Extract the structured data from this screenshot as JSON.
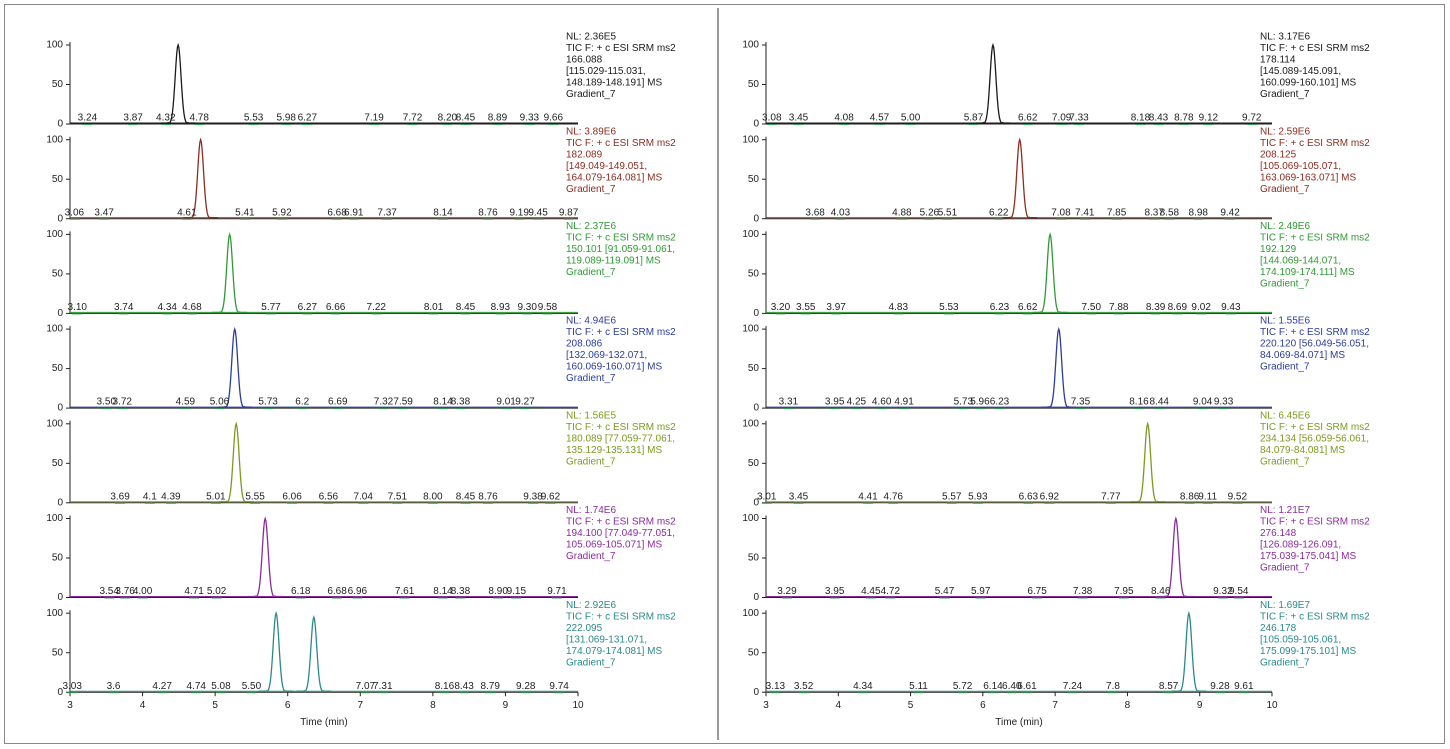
{
  "chart_data": [
    {
      "type": "line",
      "color": "#1a1a1a",
      "xlim": [
        3,
        10
      ],
      "ylim": [
        0,
        100
      ],
      "yticks": [
        0,
        50,
        100
      ],
      "info": [
        "NL: 2.36E5",
        "TIC F: + c ESI SRM ms2",
        "166.088",
        "[115.029-115.031,",
        "148.189-148.191] MS",
        "Gradient_7"
      ],
      "x": [
        4.49
      ],
      "values": [
        100
      ],
      "annotations": [
        3.24,
        3.87,
        4.32,
        4.78,
        5.53,
        5.98,
        6.27,
        7.19,
        7.72,
        {
          "value": 8.2,
          "label": "8.20"
        },
        8.45,
        8.89,
        9.33,
        9.66
      ]
    },
    {
      "type": "line",
      "color": "#8b2d20",
      "xlim": [
        3,
        10
      ],
      "ylim": [
        0,
        100
      ],
      "yticks": [
        0,
        50,
        100
      ],
      "info": [
        "NL: 3.89E6",
        "TIC F: + c ESI SRM ms2",
        "182.089",
        "[149.049-149.051,",
        "164.079-164.081] MS",
        "Gradient_7"
      ],
      "x": [
        4.8
      ],
      "values": [
        100
      ],
      "annotations": [
        3.06,
        3.47,
        4.61,
        5.41,
        5.92,
        6.68,
        6.91,
        7.37,
        8.14,
        8.76,
        9.19,
        9.45,
        9.87
      ]
    },
    {
      "type": "line",
      "color": "#2f9a35",
      "xlim": [
        3,
        10
      ],
      "ylim": [
        0,
        100
      ],
      "yticks": [
        0,
        50,
        100
      ],
      "info": [
        "NL: 2.37E6",
        "TIC F: + c ESI SRM ms2",
        "150.101 [91.059-91.061,",
        "119.089-119.091] MS",
        "Gradient_7"
      ],
      "x": [
        5.2
      ],
      "values": [
        100
      ],
      "annotations": [
        {
          "value": 3.1,
          "label": "3.10"
        },
        3.74,
        4.34,
        4.68,
        5.77,
        6.27,
        6.66,
        7.22,
        8.01,
        8.45,
        8.93,
        {
          "value": 9.3,
          "label": "9.30"
        },
        9.58
      ]
    },
    {
      "type": "line",
      "color": "#2b3c9c",
      "xlim": [
        3,
        10
      ],
      "ylim": [
        0,
        100
      ],
      "yticks": [
        0,
        50,
        100
      ],
      "info": [
        "NL: 4.94E6",
        "TIC F: + c ESI SRM ms2",
        "208.086",
        "[132.069-132.071,",
        "160.069-160.071] MS",
        "Gradient_7"
      ],
      "x": [
        5.27
      ],
      "values": [
        100
      ],
      "annotations": [
        {
          "value": 3.5,
          "label": "3.50"
        },
        3.72,
        4.59,
        5.06,
        5.73,
        6.2,
        6.69,
        7.32,
        7.59,
        8.14,
        8.38,
        9.01,
        9.27
      ]
    },
    {
      "type": "line",
      "color": "#7b9a1e",
      "xlim": [
        3,
        10
      ],
      "ylim": [
        0,
        100
      ],
      "yticks": [
        0,
        50,
        100
      ],
      "info": [
        "NL: 1.56E5",
        "TIC F: + c ESI SRM ms2",
        "180.089 [77.059-77.061,",
        "135.129-135.131] MS",
        "Gradient_7"
      ],
      "x": [
        5.29
      ],
      "values": [
        100
      ],
      "annotations": [
        3.69,
        4.1,
        4.39,
        5.01,
        5.55,
        6.06,
        6.56,
        7.04,
        7.51,
        {
          "value": 8,
          "label": "8.00"
        },
        8.45,
        8.76,
        9.38,
        9.62
      ]
    },
    {
      "type": "line",
      "color": "#8a2c9c",
      "xlim": [
        3,
        10
      ],
      "ylim": [
        0,
        100
      ],
      "yticks": [
        0,
        50,
        100
      ],
      "info": [
        "NL: 1.74E6",
        "TIC F: + c ESI SRM ms2",
        "194.100 [77.049-77.051,",
        "105.069-105.071] MS",
        "Gradient_7"
      ],
      "x": [
        5.69
      ],
      "values": [
        100
      ],
      "annotations": [
        3.54,
        3.76,
        {
          "value": 4,
          "label": "4.00"
        },
        4.71,
        5.02,
        6.18,
        6.68,
        6.96,
        7.61,
        8.14,
        8.38,
        {
          "value": 8.9,
          "label": "8.90"
        },
        9.15,
        9.71
      ]
    },
    {
      "type": "line",
      "color": "#2a8a88",
      "xlim": [
        3,
        10
      ],
      "ylim": [
        0,
        100
      ],
      "yticks": [
        0,
        50,
        100
      ],
      "xticks": [
        3,
        4,
        5,
        6,
        7,
        8,
        9,
        10
      ],
      "xlabel": "Time (min)",
      "info": [
        "NL: 2.92E6",
        "TIC F: + c ESI SRM ms2",
        "222.095",
        "[131.069-131.071,",
        "174.079-174.081] MS",
        "Gradient_7"
      ],
      "x": [
        5.84,
        6.36
      ],
      "values": [
        100,
        95
      ],
      "annotations": [
        3.03,
        3.6,
        4.27,
        4.74,
        5.08,
        {
          "value": 5.5,
          "label": "5.50"
        },
        7.07,
        7.31,
        8.16,
        8.43,
        8.79,
        9.28,
        9.74
      ]
    },
    {
      "type": "line",
      "color": "#1a1a1a",
      "xlim": [
        3,
        10
      ],
      "ylim": [
        0,
        100
      ],
      "yticks": [
        0,
        50,
        100
      ],
      "info": [
        "NL: 3.17E6",
        "TIC F: + c ESI SRM ms2",
        "178.114",
        "[145.089-145.091,",
        "160.099-160.101] MS",
        "Gradient_7"
      ],
      "x": [
        6.14
      ],
      "values": [
        100
      ],
      "annotations": [
        3.08,
        3.45,
        4.08,
        4.57,
        {
          "value": 5,
          "label": "5.00"
        },
        5.87,
        6.62,
        7.09,
        7.33,
        8.18,
        8.43,
        8.78,
        9.12,
        9.72
      ]
    },
    {
      "type": "line",
      "color": "#8b2d20",
      "xlim": [
        3,
        10
      ],
      "ylim": [
        0,
        100
      ],
      "yticks": [
        0,
        50,
        100
      ],
      "info": [
        "NL: 2.59E6",
        "TIC F: + c ESI SRM ms2",
        "208.125",
        "[105.069-105.071,",
        "163.069-163.071] MS",
        "Gradient_7"
      ],
      "x": [
        6.51
      ],
      "values": [
        100
      ],
      "annotations": [
        3.68,
        4.03,
        4.88,
        5.26,
        5.51,
        6.22,
        7.08,
        7.41,
        7.85,
        8.37,
        8.58,
        8.98,
        9.42
      ]
    },
    {
      "type": "line",
      "color": "#2f9a35",
      "xlim": [
        3,
        10
      ],
      "ylim": [
        0,
        100
      ],
      "yticks": [
        0,
        50,
        100
      ],
      "info": [
        "NL: 2.49E6",
        "TIC F: + c ESI SRM ms2",
        "192.129",
        "[144.069-144.071,",
        "174.109-174.111] MS",
        "Gradient_7"
      ],
      "x": [
        6.93
      ],
      "values": [
        100
      ],
      "annotations": [
        {
          "value": 3.2,
          "label": "3.20"
        },
        3.55,
        3.97,
        4.83,
        5.53,
        6.23,
        6.62,
        {
          "value": 7.5,
          "label": "7.50"
        },
        7.88,
        8.39,
        8.69,
        9.02,
        9.43
      ]
    },
    {
      "type": "line",
      "color": "#2b3c9c",
      "xlim": [
        3,
        10
      ],
      "ylim": [
        0,
        100
      ],
      "yticks": [
        0,
        50,
        100
      ],
      "info": [
        "NL: 1.55E6",
        "TIC F: + c ESI SRM ms2",
        "220.120 [56.049-56.051,",
        "84.069-84.071] MS",
        "Gradient_7"
      ],
      "x": [
        7.05
      ],
      "values": [
        100
      ],
      "annotations": [
        3.31,
        3.95,
        4.25,
        {
          "value": 4.6,
          "label": "4.60"
        },
        4.91,
        5.73,
        5.96,
        6.23,
        7.35,
        8.16,
        8.44,
        9.04,
        9.33
      ]
    },
    {
      "type": "line",
      "color": "#7b9a1e",
      "xlim": [
        3,
        10
      ],
      "ylim": [
        0,
        100
      ],
      "yticks": [
        0,
        50,
        100
      ],
      "info": [
        "NL: 6.45E6",
        "TIC F: + c ESI SRM ms2",
        "234.134 [56.059-56.061,",
        "84.079-84.081] MS",
        "Gradient_7"
      ],
      "x": [
        8.28
      ],
      "values": [
        100
      ],
      "annotations": [
        3.01,
        3.45,
        4.41,
        4.76,
        5.57,
        5.93,
        6.63,
        6.92,
        7.77,
        8.86,
        9.11,
        9.52
      ]
    },
    {
      "type": "line",
      "color": "#8a2c9c",
      "xlim": [
        3,
        10
      ],
      "ylim": [
        0,
        100
      ],
      "yticks": [
        0,
        50,
        100
      ],
      "info": [
        "NL: 1.21E7",
        "TIC F: + c ESI SRM ms2",
        "276.148",
        "[126.089-126.091,",
        "175.039-175.041] MS",
        "Gradient_7"
      ],
      "x": [
        8.67
      ],
      "values": [
        100
      ],
      "annotations": [
        3.29,
        3.95,
        4.45,
        4.72,
        5.47,
        5.97,
        6.75,
        7.38,
        7.95,
        8.46,
        9.32,
        9.54
      ]
    },
    {
      "type": "line",
      "color": "#2a8a88",
      "xlim": [
        3,
        10
      ],
      "ylim": [
        0,
        100
      ],
      "yticks": [
        0,
        50,
        100
      ],
      "xticks": [
        3,
        4,
        5,
        6,
        7,
        8,
        9,
        10
      ],
      "xlabel": "Time (min)",
      "info": [
        "NL: 1.69E7",
        "TIC F: + c ESI SRM ms2",
        "246.178",
        "[105.059-105.061,",
        "175.099-175.101] MS",
        "Gradient_7"
      ],
      "x": [
        8.85
      ],
      "values": [
        100
      ],
      "annotations": [
        3.13,
        3.52,
        4.34,
        5.11,
        5.72,
        6.14,
        {
          "value": 6.4,
          "label": "6.40"
        },
        6.61,
        7.24,
        7.8,
        8.57,
        9.28,
        9.61
      ]
    }
  ]
}
